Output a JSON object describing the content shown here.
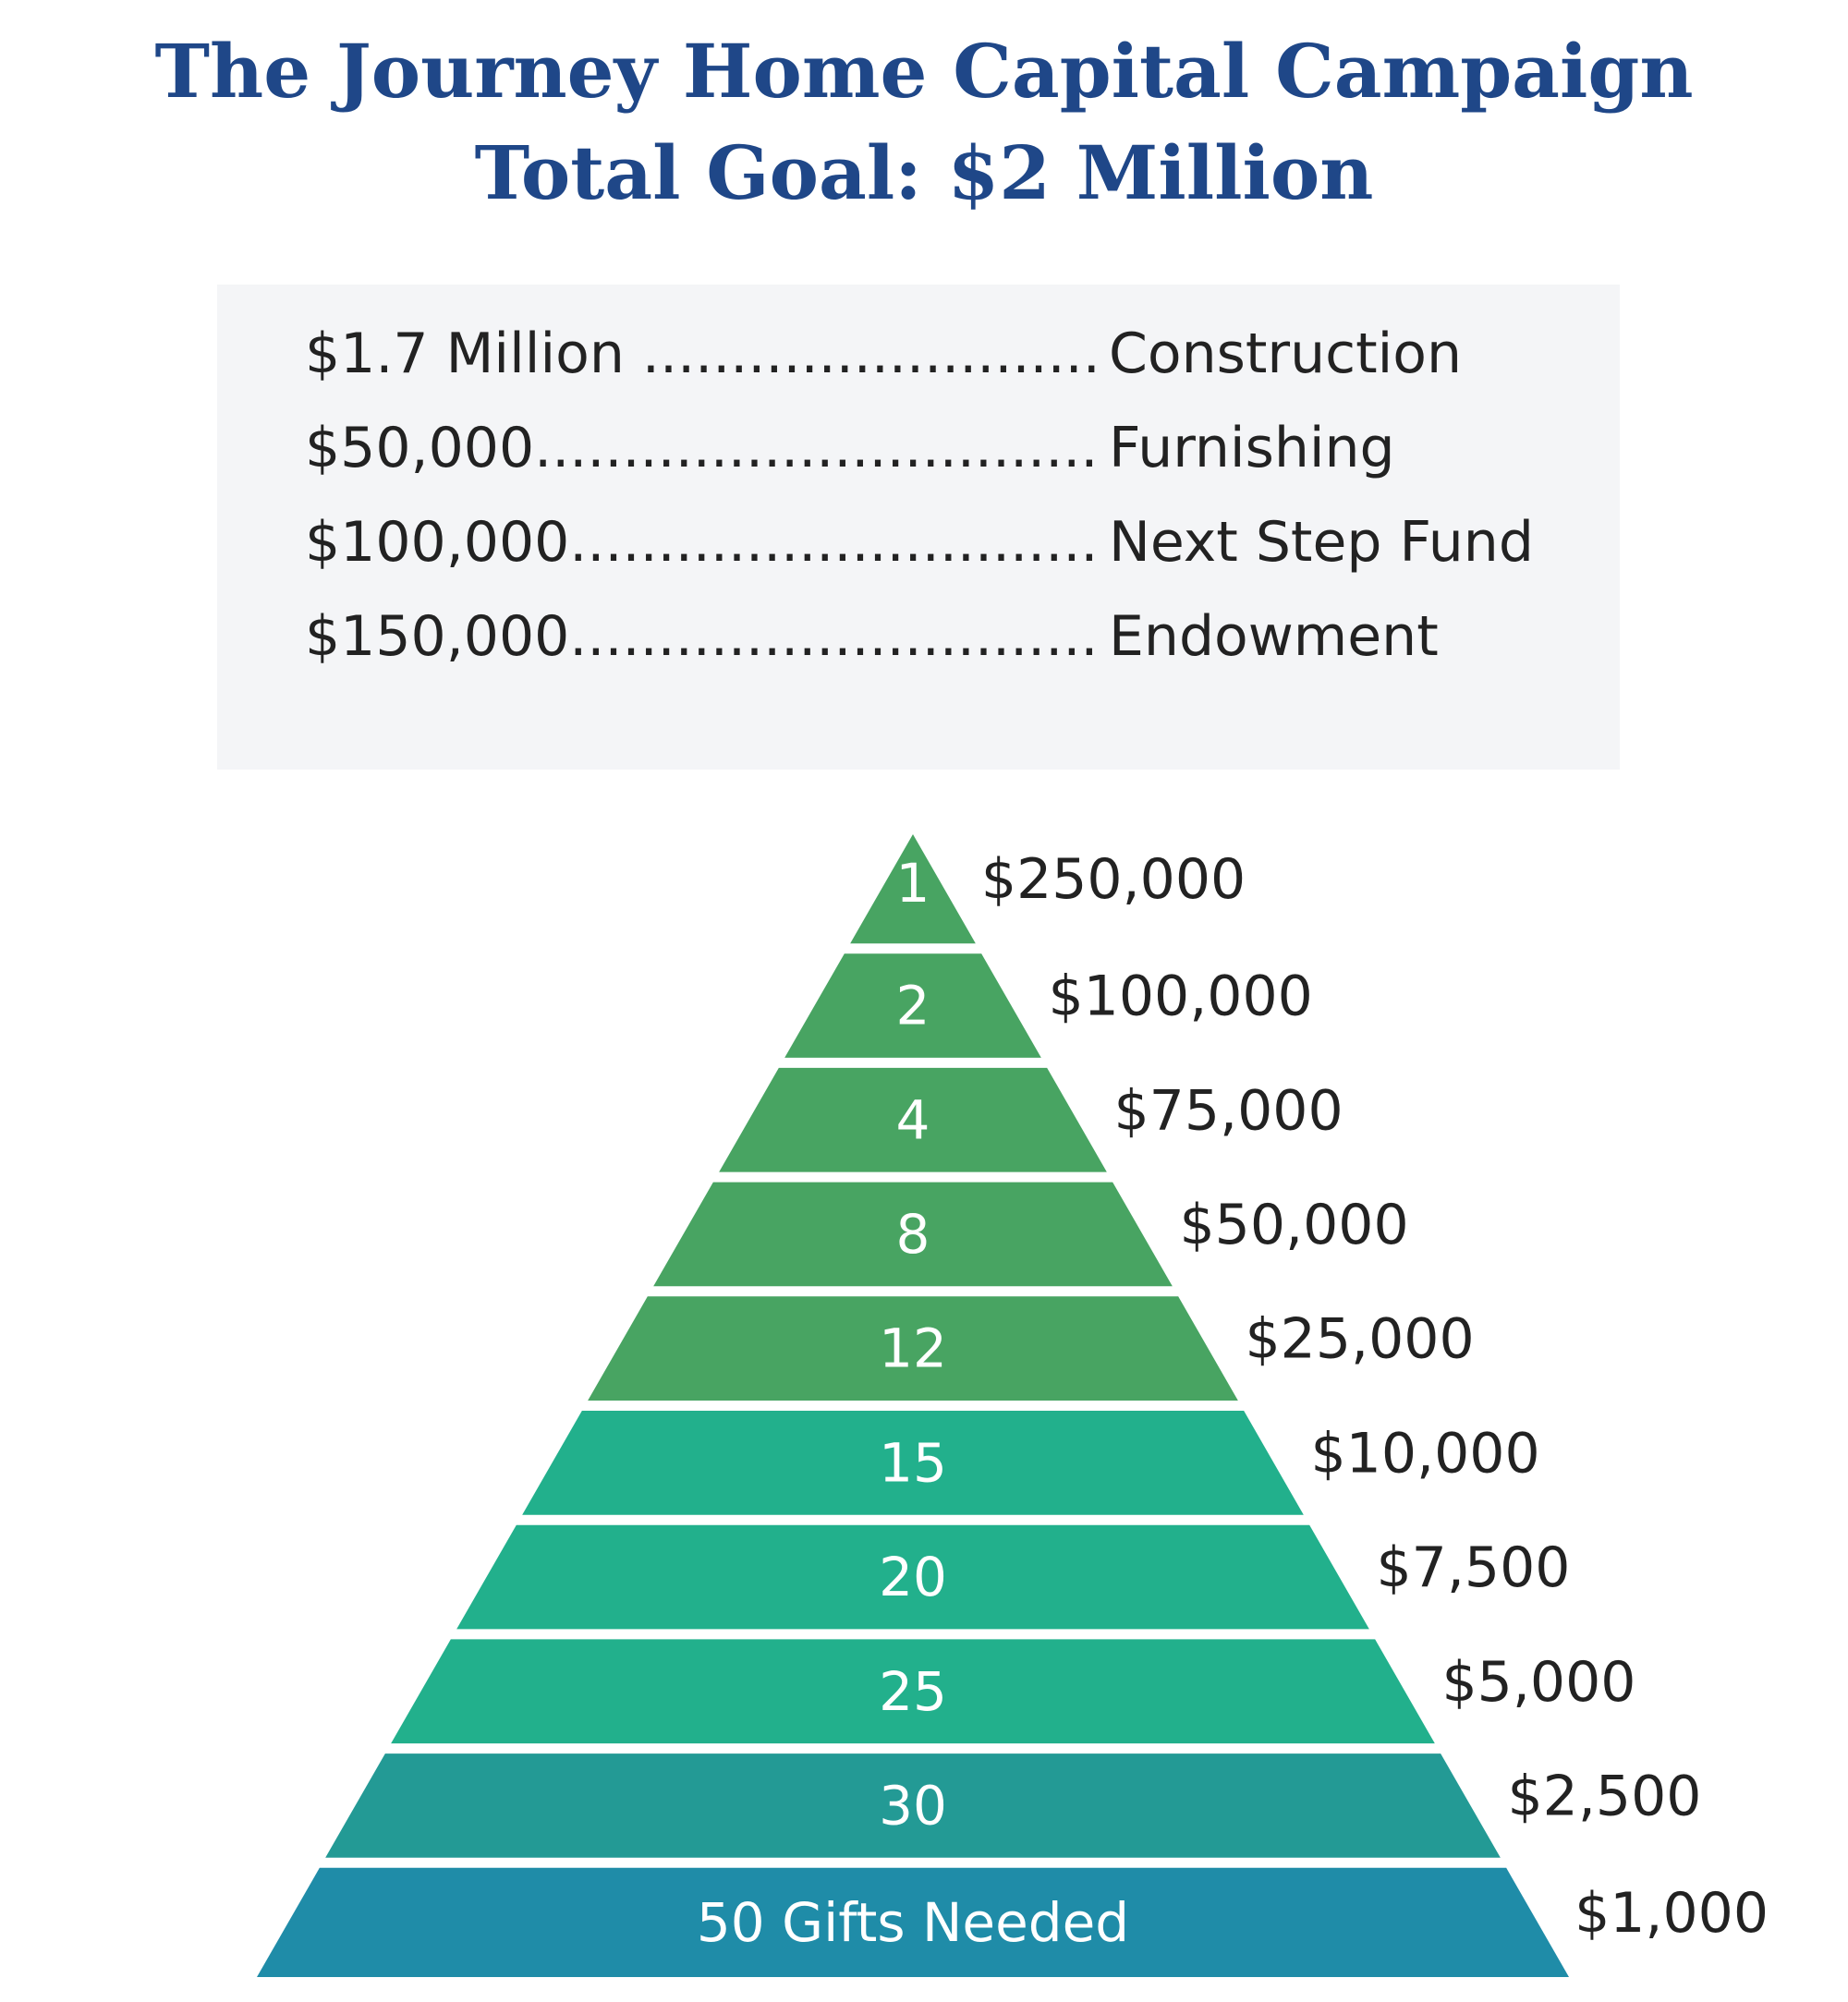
{
  "title": {
    "line1": "The Journey Home Capital Campaign",
    "line2": "Total Goal: $2 Million"
  },
  "allocations": [
    {
      "amount": "$1.7 Million ",
      "label": "Construction"
    },
    {
      "amount": "$50,000",
      "label": "Furnishing"
    },
    {
      "amount": "$100,000",
      "label": "Next Step Fund"
    },
    {
      "amount": "$150,000",
      "label": "Endowment"
    }
  ],
  "gift_pyramid": {
    "tiers": [
      {
        "count": "1",
        "amount": "$250,000",
        "color": "#48a462"
      },
      {
        "count": "2",
        "amount": "$100,000",
        "color": "#48a462"
      },
      {
        "count": "4",
        "amount": "$75,000",
        "color": "#48a462"
      },
      {
        "count": "8",
        "amount": "$50,000",
        "color": "#48a462"
      },
      {
        "count": "12",
        "amount": "$25,000",
        "color": "#48a462"
      },
      {
        "count": "15",
        "amount": "$10,000",
        "color": "#22b08c"
      },
      {
        "count": "20",
        "amount": "$7,500",
        "color": "#22b08c"
      },
      {
        "count": "25",
        "amount": "$5,000",
        "color": "#22b08c"
      },
      {
        "count": "30",
        "amount": "$2,500",
        "color": "#239a95"
      },
      {
        "count": "50 Gifts Needed",
        "amount": "$1,000",
        "color": "#1f8ca8"
      }
    ]
  }
}
